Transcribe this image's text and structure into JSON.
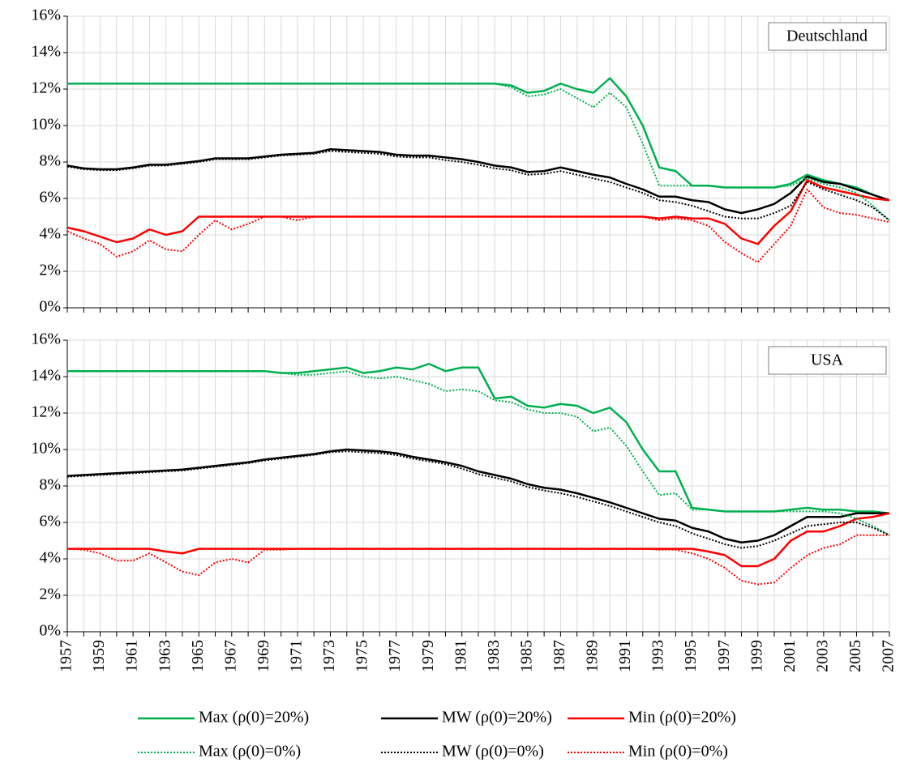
{
  "chart_data": [
    {
      "type": "line",
      "title": "Deutschland",
      "x": [
        1957,
        1958,
        1959,
        1960,
        1961,
        1962,
        1963,
        1964,
        1965,
        1966,
        1967,
        1968,
        1969,
        1970,
        1971,
        1972,
        1973,
        1974,
        1975,
        1976,
        1977,
        1978,
        1979,
        1980,
        1981,
        1982,
        1983,
        1984,
        1985,
        1986,
        1987,
        1988,
        1989,
        1990,
        1991,
        1992,
        1993,
        1994,
        1995,
        1996,
        1997,
        1998,
        1999,
        2000,
        2001,
        2002,
        2003,
        2004,
        2005,
        2006,
        2007
      ],
      "xlim": [
        1957,
        2007
      ],
      "xgrid": [
        1957,
        1958,
        1959,
        1960,
        1961,
        1962,
        1963,
        1964,
        1965,
        1966,
        1967,
        1968,
        1969,
        1970,
        1971,
        1972,
        1973,
        1974,
        1975,
        1976,
        1977,
        1978,
        1979,
        1980,
        1981,
        1982,
        1983,
        1984,
        1985,
        1986,
        1987,
        1988,
        1989,
        1990,
        1991,
        1992,
        1993,
        1994,
        1995,
        1996,
        1997,
        1998,
        1999,
        2000,
        2001,
        2002,
        2003,
        2004,
        2005,
        2006,
        2007
      ],
      "ylim": [
        0,
        16
      ],
      "yticks": [
        {
          "value": 0,
          "label": "0%"
        },
        {
          "value": 2,
          "label": "2%"
        },
        {
          "value": 4,
          "label": "4%"
        },
        {
          "value": 6,
          "label": "6%"
        },
        {
          "value": 8,
          "label": "8%"
        },
        {
          "value": 10,
          "label": "10%"
        },
        {
          "value": 12,
          "label": "12%"
        },
        {
          "value": 14,
          "label": "14%"
        },
        {
          "value": 16,
          "label": "16%"
        }
      ],
      "grid": true,
      "series": [
        {
          "name": "Max (ρ(0)=20%)",
          "color": "#00b050",
          "style": "solid",
          "values": [
            12.3,
            12.3,
            12.3,
            12.3,
            12.3,
            12.3,
            12.3,
            12.3,
            12.3,
            12.3,
            12.3,
            12.3,
            12.3,
            12.3,
            12.3,
            12.3,
            12.3,
            12.3,
            12.3,
            12.3,
            12.3,
            12.3,
            12.3,
            12.3,
            12.3,
            12.3,
            12.3,
            12.2,
            11.8,
            11.9,
            12.3,
            12.0,
            11.8,
            12.6,
            11.6,
            10.0,
            7.7,
            7.5,
            6.7,
            6.7,
            6.6,
            6.6,
            6.6,
            6.6,
            6.8,
            7.3,
            7.0,
            6.8,
            6.6,
            6.2,
            5.9
          ]
        },
        {
          "name": "MW (ρ(0)=20%)",
          "color": "#000000",
          "style": "solid",
          "values": [
            7.8,
            7.65,
            7.6,
            7.6,
            7.7,
            7.85,
            7.85,
            7.95,
            8.05,
            8.2,
            8.2,
            8.2,
            8.3,
            8.4,
            8.45,
            8.5,
            8.7,
            8.65,
            8.6,
            8.55,
            8.4,
            8.35,
            8.35,
            8.25,
            8.15,
            8.0,
            7.8,
            7.7,
            7.45,
            7.5,
            7.7,
            7.5,
            7.3,
            7.15,
            6.8,
            6.5,
            6.1,
            6.1,
            5.9,
            5.8,
            5.4,
            5.2,
            5.4,
            5.7,
            6.3,
            7.2,
            6.9,
            6.8,
            6.5,
            6.2,
            5.9
          ]
        },
        {
          "name": "Min (ρ(0)=20%)",
          "color": "#ff0000",
          "style": "solid",
          "values": [
            4.4,
            4.2,
            3.9,
            3.6,
            3.8,
            4.3,
            4.0,
            4.2,
            5.0,
            5.0,
            5.0,
            5.0,
            5.0,
            5.0,
            5.0,
            5.0,
            5.0,
            5.0,
            5.0,
            5.0,
            5.0,
            5.0,
            5.0,
            5.0,
            5.0,
            5.0,
            5.0,
            5.0,
            5.0,
            5.0,
            5.0,
            5.0,
            5.0,
            5.0,
            5.0,
            5.0,
            4.9,
            5.0,
            4.9,
            4.9,
            4.6,
            3.8,
            3.5,
            4.5,
            5.3,
            7.0,
            6.6,
            6.4,
            6.2,
            6.0,
            5.9
          ]
        },
        {
          "name": "Max (ρ(0)=0%)",
          "color": "#00b050",
          "style": "dotted",
          "values": [
            12.3,
            12.3,
            12.3,
            12.3,
            12.3,
            12.3,
            12.3,
            12.3,
            12.3,
            12.3,
            12.3,
            12.3,
            12.3,
            12.3,
            12.3,
            12.3,
            12.3,
            12.3,
            12.3,
            12.3,
            12.3,
            12.3,
            12.3,
            12.3,
            12.3,
            12.3,
            12.3,
            12.1,
            11.6,
            11.7,
            12.0,
            11.5,
            11.0,
            11.8,
            11.0,
            9.0,
            6.7,
            6.7,
            6.7,
            6.7,
            6.6,
            6.6,
            6.6,
            6.6,
            6.7,
            7.1,
            6.8,
            6.6,
            6.3,
            5.6,
            4.8
          ]
        },
        {
          "name": "MW (ρ(0)=0%)",
          "color": "#000000",
          "style": "dotted",
          "values": [
            7.75,
            7.6,
            7.55,
            7.55,
            7.65,
            7.8,
            7.8,
            7.9,
            8.0,
            8.15,
            8.15,
            8.15,
            8.25,
            8.35,
            8.4,
            8.45,
            8.6,
            8.55,
            8.5,
            8.45,
            8.3,
            8.25,
            8.25,
            8.1,
            8.0,
            7.85,
            7.65,
            7.55,
            7.3,
            7.35,
            7.5,
            7.3,
            7.1,
            6.9,
            6.6,
            6.3,
            5.9,
            5.8,
            5.6,
            5.3,
            5.0,
            4.9,
            4.9,
            5.2,
            5.6,
            6.9,
            6.5,
            6.2,
            5.9,
            5.5,
            4.8
          ]
        },
        {
          "name": "Min (ρ(0)=0%)",
          "color": "#ff0000",
          "style": "dotted",
          "values": [
            4.2,
            3.8,
            3.5,
            2.8,
            3.1,
            3.7,
            3.2,
            3.1,
            4.0,
            4.8,
            4.3,
            4.6,
            5.0,
            5.0,
            4.8,
            5.0,
            5.0,
            5.0,
            5.0,
            5.0,
            5.0,
            5.0,
            5.0,
            5.0,
            5.0,
            5.0,
            5.0,
            5.0,
            5.0,
            5.0,
            5.0,
            5.0,
            5.0,
            5.0,
            5.0,
            5.0,
            4.8,
            4.9,
            4.8,
            4.5,
            3.6,
            3.0,
            2.5,
            3.5,
            4.5,
            6.5,
            5.5,
            5.2,
            5.1,
            4.9,
            4.7
          ]
        }
      ]
    },
    {
      "type": "line",
      "title": "USA",
      "x": [
        1957,
        1958,
        1959,
        1960,
        1961,
        1962,
        1963,
        1964,
        1965,
        1966,
        1967,
        1968,
        1969,
        1970,
        1971,
        1972,
        1973,
        1974,
        1975,
        1976,
        1977,
        1978,
        1979,
        1980,
        1981,
        1982,
        1983,
        1984,
        1985,
        1986,
        1987,
        1988,
        1989,
        1990,
        1991,
        1992,
        1993,
        1994,
        1995,
        1996,
        1997,
        1998,
        1999,
        2000,
        2001,
        2002,
        2003,
        2004,
        2005,
        2006,
        2007
      ],
      "xlim": [
        1957,
        2007
      ],
      "xticks": [
        1957,
        1959,
        1961,
        1963,
        1965,
        1967,
        1969,
        1971,
        1973,
        1975,
        1977,
        1979,
        1981,
        1983,
        1985,
        1987,
        1989,
        1991,
        1993,
        1995,
        1997,
        1999,
        2001,
        2003,
        2005,
        2007
      ],
      "xminorticks": [
        1958,
        1960,
        1962,
        1964,
        1966,
        1968,
        1970,
        1972,
        1974,
        1976,
        1978,
        1980,
        1982,
        1984,
        1986,
        1988,
        1990,
        1992,
        1994,
        1996,
        1998,
        2000,
        2002,
        2004,
        2006
      ],
      "ylim": [
        0,
        16
      ],
      "yticks": [
        {
          "value": 0,
          "label": "0%"
        },
        {
          "value": 2,
          "label": "2%"
        },
        {
          "value": 4,
          "label": "4%"
        },
        {
          "value": 6,
          "label": "6%"
        },
        {
          "value": 8,
          "label": "8%"
        },
        {
          "value": 10,
          "label": "10%"
        },
        {
          "value": 12,
          "label": "12%"
        },
        {
          "value": 14,
          "label": "14%"
        },
        {
          "value": 16,
          "label": "16%"
        }
      ],
      "grid": true,
      "series": [
        {
          "color": "#00b050",
          "style": "solid",
          "values": [
            14.3,
            14.3,
            14.3,
            14.3,
            14.3,
            14.3,
            14.3,
            14.3,
            14.3,
            14.3,
            14.3,
            14.3,
            14.3,
            14.2,
            14.2,
            14.3,
            14.4,
            14.5,
            14.2,
            14.3,
            14.5,
            14.4,
            14.7,
            14.3,
            14.5,
            14.5,
            12.8,
            12.9,
            12.4,
            12.3,
            12.5,
            12.4,
            12.0,
            12.3,
            11.5,
            10.0,
            8.8,
            8.8,
            6.8,
            6.7,
            6.6,
            6.6,
            6.6,
            6.6,
            6.7,
            6.8,
            6.7,
            6.7,
            6.6,
            6.6,
            6.5
          ]
        },
        {
          "color": "#000000",
          "style": "solid",
          "values": [
            8.55,
            8.6,
            8.65,
            8.7,
            8.75,
            8.8,
            8.85,
            8.9,
            9.0,
            9.1,
            9.2,
            9.3,
            9.45,
            9.55,
            9.65,
            9.75,
            9.9,
            10.0,
            9.95,
            9.9,
            9.8,
            9.6,
            9.45,
            9.3,
            9.1,
            8.8,
            8.6,
            8.4,
            8.1,
            7.9,
            7.8,
            7.6,
            7.35,
            7.1,
            6.8,
            6.5,
            6.2,
            6.1,
            5.7,
            5.5,
            5.1,
            4.9,
            5.0,
            5.3,
            5.8,
            6.3,
            6.3,
            6.3,
            6.5,
            6.5,
            6.5
          ]
        },
        {
          "color": "#ff0000",
          "style": "solid",
          "values": [
            4.55,
            4.55,
            4.55,
            4.55,
            4.55,
            4.55,
            4.4,
            4.3,
            4.55,
            4.55,
            4.55,
            4.55,
            4.55,
            4.55,
            4.55,
            4.55,
            4.55,
            4.55,
            4.55,
            4.55,
            4.55,
            4.55,
            4.55,
            4.55,
            4.55,
            4.55,
            4.55,
            4.55,
            4.55,
            4.55,
            4.55,
            4.55,
            4.55,
            4.55,
            4.55,
            4.55,
            4.55,
            4.55,
            4.55,
            4.4,
            4.2,
            3.6,
            3.6,
            4.0,
            5.0,
            5.5,
            5.5,
            5.8,
            6.2,
            6.3,
            6.5
          ]
        },
        {
          "color": "#00b050",
          "style": "dotted",
          "values": [
            14.3,
            14.3,
            14.3,
            14.3,
            14.3,
            14.3,
            14.3,
            14.3,
            14.3,
            14.3,
            14.3,
            14.3,
            14.3,
            14.2,
            14.1,
            14.1,
            14.2,
            14.3,
            14.0,
            13.9,
            14.0,
            13.8,
            13.6,
            13.2,
            13.3,
            13.2,
            12.7,
            12.6,
            12.2,
            12.0,
            12.0,
            11.8,
            11.0,
            11.2,
            10.2,
            8.8,
            7.5,
            7.6,
            6.7,
            6.7,
            6.6,
            6.6,
            6.6,
            6.6,
            6.6,
            6.6,
            6.6,
            6.5,
            6.2,
            5.8,
            5.3
          ]
        },
        {
          "color": "#000000",
          "style": "dotted",
          "values": [
            8.5,
            8.55,
            8.6,
            8.65,
            8.7,
            8.75,
            8.8,
            8.85,
            8.95,
            9.05,
            9.15,
            9.25,
            9.4,
            9.5,
            9.6,
            9.7,
            9.85,
            9.9,
            9.85,
            9.8,
            9.7,
            9.5,
            9.35,
            9.2,
            8.95,
            8.65,
            8.45,
            8.25,
            7.95,
            7.75,
            7.6,
            7.4,
            7.15,
            6.9,
            6.6,
            6.3,
            6.0,
            5.8,
            5.4,
            5.1,
            4.8,
            4.6,
            4.7,
            5.0,
            5.4,
            5.8,
            5.9,
            6.0,
            6.0,
            5.7,
            5.3
          ]
        },
        {
          "color": "#ff0000",
          "style": "dotted",
          "values": [
            4.55,
            4.5,
            4.3,
            3.9,
            3.9,
            4.3,
            3.8,
            3.3,
            3.1,
            3.8,
            4.0,
            3.8,
            4.5,
            4.5,
            4.55,
            4.55,
            4.55,
            4.55,
            4.55,
            4.55,
            4.55,
            4.55,
            4.55,
            4.55,
            4.55,
            4.55,
            4.55,
            4.55,
            4.55,
            4.55,
            4.55,
            4.55,
            4.55,
            4.55,
            4.55,
            4.55,
            4.5,
            4.5,
            4.3,
            4.0,
            3.5,
            2.8,
            2.6,
            2.7,
            3.5,
            4.2,
            4.6,
            4.8,
            5.3,
            5.3,
            5.3
          ]
        }
      ]
    }
  ]
}
